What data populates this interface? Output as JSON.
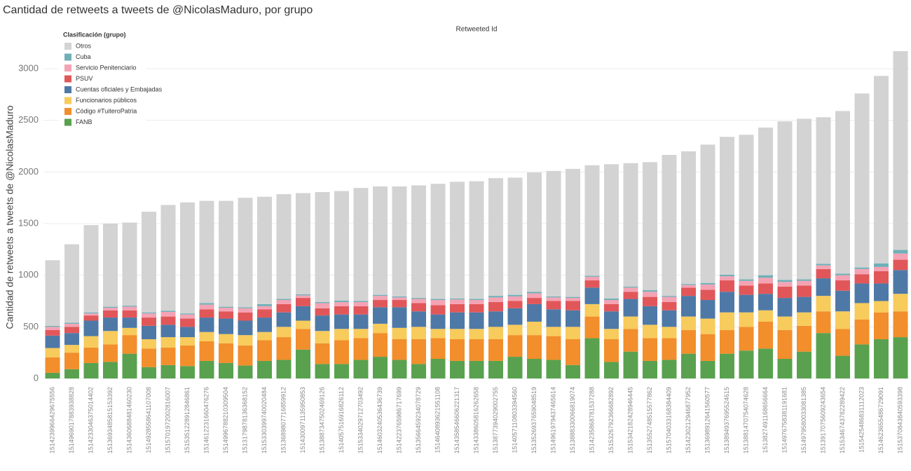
{
  "chart_data": {
    "type": "stacked_bar",
    "title": "Cantidad de retweets a tweets de @NicolasMaduro, por grupo",
    "x_label": "Retweeted Id",
    "y_label": "Cantidad de retweets a tweets de @NicolasMaduro",
    "legend_title": "Clasificación (grupo)",
    "categories": [
      "1514239966429675556",
      "1514969017883938828",
      "1514233046375014402",
      "1513693485815153392",
      "1514360688481460230",
      "1514928558641107008",
      "1515701972002816007",
      "1515351228912846861",
      "1514612231660476276",
      "1514996788210309504",
      "1513179878136368152",
      "1515330399740020484",
      "1513689807716859912",
      "1514300971135950853",
      "1513887347502469126",
      "1514057516916826112",
      "1515334029712703492",
      "1514603240536436739",
      "1514223765986717699",
      "1513566459234078729",
      "1514640893621551108",
      "1514358546606221317",
      "1514338605816262658",
      "1513877394029002755",
      "1514057110803394560",
      "1513526937659048519",
      "1514961979437465614",
      "1513888330066819074",
      "1514235868781537288",
      "1515326792366682892",
      "1515342182428946445",
      "1513552748515577862",
      "1515704033168384409",
      "1514230212946877952",
      "1513698912641560577",
      "1513894937695524615",
      "1513881470754074628",
      "1513827491168656664",
      "1514976758381191681",
      "1514979580033081385",
      "1513917075609243654",
      "1515346743782289422",
      "1515425486831112023",
      "1514623655486729091",
      "1515370843840593398"
    ],
    "series": [
      {
        "name": "FANB",
        "color": "#59a14f",
        "values": [
          55,
          90,
          150,
          160,
          240,
          110,
          130,
          120,
          170,
          150,
          125,
          170,
          180,
          280,
          140,
          140,
          180,
          210,
          180,
          140,
          190,
          170,
          170,
          170,
          210,
          190,
          180,
          130,
          390,
          160,
          260,
          170,
          180,
          240,
          170,
          240,
          270,
          290,
          190,
          260,
          440,
          220,
          330,
          380,
          400
        ]
      },
      {
        "name": "Código #TuiteroPatria",
        "color": "#f28e2b",
        "values": [
          150,
          160,
          150,
          170,
          180,
          180,
          170,
          200,
          190,
          190,
          195,
          200,
          220,
          200,
          200,
          230,
          210,
          230,
          200,
          240,
          200,
          210,
          210,
          210,
          210,
          230,
          230,
          250,
          210,
          220,
          220,
          220,
          210,
          230,
          260,
          230,
          230,
          260,
          280,
          250,
          210,
          260,
          240,
          260,
          250
        ]
      },
      {
        "name": "Funcionarios públicos",
        "color": "#f7cb5c",
        "values": [
          90,
          75,
          110,
          130,
          70,
          90,
          100,
          80,
          90,
          90,
          100,
          80,
          100,
          80,
          120,
          110,
          90,
          90,
          110,
          120,
          90,
          100,
          100,
          120,
          100,
          130,
          90,
          120,
          120,
          100,
          120,
          130,
          110,
          130,
          150,
          170,
          140,
          110,
          130,
          130,
          150,
          170,
          160,
          110,
          170
        ]
      },
      {
        "name": "Cuentas oficiales y Embajadas",
        "color": "#4e79a7",
        "values": [
          120,
          115,
          150,
          130,
          100,
          130,
          120,
          100,
          140,
          150,
          140,
          140,
          140,
          140,
          150,
          140,
          140,
          160,
          200,
          150,
          140,
          160,
          160,
          150,
          160,
          170,
          170,
          160,
          160,
          170,
          170,
          180,
          160,
          200,
          180,
          200,
          170,
          160,
          180,
          150,
          170,
          200,
          190,
          170,
          230
        ]
      },
      {
        "name": "PSUV",
        "color": "#e15759",
        "values": [
          55,
          60,
          50,
          70,
          70,
          80,
          80,
          80,
          80,
          70,
          80,
          80,
          80,
          80,
          70,
          80,
          80,
          70,
          70,
          80,
          90,
          80,
          80,
          90,
          70,
          60,
          80,
          90,
          70,
          70,
          70,
          90,
          80,
          80,
          100,
          110,
          90,
          100,
          110,
          110,
          90,
          100,
          90,
          120,
          100
        ]
      },
      {
        "name": "Servicio Penitenciario",
        "color": "#f4a3b4",
        "values": [
          30,
          30,
          20,
          25,
          35,
          40,
          45,
          40,
          45,
          35,
          40,
          30,
          40,
          25,
          50,
          40,
          40,
          40,
          25,
          40,
          50,
          45,
          40,
          45,
          45,
          45,
          35,
          30,
          35,
          40,
          40,
          50,
          50,
          25,
          50,
          40,
          45,
          55,
          45,
          45,
          35,
          50,
          50,
          40,
          60
        ]
      },
      {
        "name": "Cuba",
        "color": "#6fb0b8",
        "values": [
          10,
          10,
          10,
          10,
          10,
          10,
          10,
          10,
          15,
          10,
          10,
          20,
          10,
          10,
          10,
          15,
          10,
          10,
          10,
          10,
          10,
          10,
          10,
          15,
          15,
          15,
          10,
          10,
          10,
          15,
          10,
          15,
          10,
          10,
          15,
          15,
          15,
          25,
          20,
          15,
          15,
          15,
          15,
          35,
          35
        ]
      },
      {
        "name": "Otros",
        "color": "#d3d3d3",
        "values": [
          635,
          760,
          845,
          805,
          805,
          975,
          1025,
          1075,
          990,
          1025,
          1060,
          1040,
          1015,
          980,
          1065,
          1060,
          1095,
          1050,
          1065,
          1090,
          1115,
          1130,
          1140,
          1140,
          1135,
          1155,
          1215,
          1240,
          1070,
          1300,
          1195,
          1240,
          1365,
          1285,
          1340,
          1335,
          1400,
          1430,
          1535,
          1555,
          1420,
          1575,
          1685,
          1815,
          1925
        ]
      }
    ],
    "ylim": [
      0,
      3250
    ],
    "yticks": [
      0,
      500,
      1000,
      1500,
      2000,
      2500,
      3000
    ],
    "grid": true
  }
}
